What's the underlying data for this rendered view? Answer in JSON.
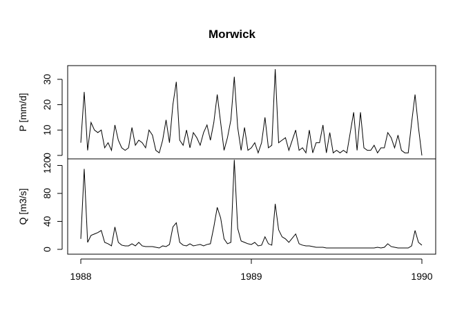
{
  "title": "Morwick",
  "chart_data": [
    {
      "type": "line",
      "ylabel": "P [mm/d]",
      "color": "#000000",
      "x": [
        1988,
        1988.02,
        1988.04,
        1988.06,
        1988.08,
        1988.1,
        1988.12,
        1988.14,
        1988.16,
        1988.18,
        1988.2,
        1988.22,
        1988.24,
        1988.26,
        1988.28,
        1988.3,
        1988.32,
        1988.34,
        1988.36,
        1988.38,
        1988.4,
        1988.42,
        1988.44,
        1988.46,
        1988.48,
        1988.5,
        1988.52,
        1988.54,
        1988.56,
        1988.58,
        1988.6,
        1988.62,
        1988.64,
        1988.66,
        1988.68,
        1988.7,
        1988.72,
        1988.74,
        1988.76,
        1988.78,
        1988.8,
        1988.82,
        1988.84,
        1988.86,
        1988.88,
        1988.9,
        1988.92,
        1988.94,
        1988.96,
        1988.98,
        1989,
        1989.02,
        1989.04,
        1989.06,
        1989.08,
        1989.1,
        1989.12,
        1989.14,
        1989.16,
        1989.18,
        1989.2,
        1989.22,
        1989.24,
        1989.26,
        1989.28,
        1989.3,
        1989.32,
        1989.34,
        1989.36,
        1989.38,
        1989.4,
        1989.42,
        1989.44,
        1989.46,
        1989.48,
        1989.5,
        1989.52,
        1989.54,
        1989.56,
        1989.58,
        1989.6,
        1989.62,
        1989.64,
        1989.66,
        1989.68,
        1989.7,
        1989.72,
        1989.74,
        1989.76,
        1989.78,
        1989.8,
        1989.82,
        1989.84,
        1989.86,
        1989.88,
        1989.9,
        1989.92,
        1989.94,
        1989.96,
        1989.98,
        1990
      ],
      "values": [
        5,
        25,
        2,
        13,
        10,
        9,
        10,
        3,
        5,
        2,
        12,
        6,
        3,
        2,
        3,
        11,
        4,
        6,
        5,
        3,
        10,
        8,
        2,
        1,
        6,
        14,
        5,
        20,
        29,
        6,
        4,
        10,
        3,
        9,
        7,
        4,
        9,
        12,
        6,
        13,
        24,
        13,
        2,
        7,
        14,
        31,
        11,
        2,
        11,
        2,
        3,
        5,
        1,
        5,
        15,
        3,
        4,
        34,
        5,
        6,
        7,
        2,
        6,
        10,
        2,
        3,
        1,
        10,
        1,
        5,
        5,
        12,
        1,
        9,
        1,
        2,
        1,
        2,
        1,
        9,
        17,
        2,
        17,
        3,
        2,
        2,
        4,
        1,
        3,
        3,
        9,
        7,
        3,
        8,
        2,
        1,
        1,
        13,
        24,
        11,
        0
      ],
      "xlim": [
        1987.923,
        1990.081
      ],
      "ylim": [
        -1.36,
        35.4
      ],
      "yticks": [
        0,
        10,
        20,
        30
      ]
    },
    {
      "type": "line",
      "ylabel": "Q [m3/s]",
      "color": "#000000",
      "x": [
        1988,
        1988.02,
        1988.04,
        1988.06,
        1988.08,
        1988.1,
        1988.12,
        1988.14,
        1988.16,
        1988.18,
        1988.2,
        1988.22,
        1988.24,
        1988.26,
        1988.28,
        1988.3,
        1988.32,
        1988.34,
        1988.36,
        1988.38,
        1988.4,
        1988.42,
        1988.44,
        1988.46,
        1988.48,
        1988.5,
        1988.52,
        1988.54,
        1988.56,
        1988.58,
        1988.6,
        1988.62,
        1988.64,
        1988.66,
        1988.68,
        1988.7,
        1988.72,
        1988.74,
        1988.76,
        1988.78,
        1988.8,
        1988.82,
        1988.84,
        1988.86,
        1988.88,
        1988.9,
        1988.92,
        1988.94,
        1988.96,
        1988.98,
        1989,
        1989.02,
        1989.04,
        1989.06,
        1989.08,
        1989.1,
        1989.12,
        1989.14,
        1989.16,
        1989.18,
        1989.2,
        1989.22,
        1989.24,
        1989.26,
        1989.28,
        1989.3,
        1989.32,
        1989.34,
        1989.36,
        1989.38,
        1989.4,
        1989.42,
        1989.44,
        1989.46,
        1989.48,
        1989.5,
        1989.52,
        1989.54,
        1989.56,
        1989.58,
        1989.6,
        1989.62,
        1989.64,
        1989.66,
        1989.68,
        1989.7,
        1989.72,
        1989.74,
        1989.76,
        1989.78,
        1989.8,
        1989.82,
        1989.84,
        1989.86,
        1989.88,
        1989.9,
        1989.92,
        1989.94,
        1989.96,
        1989.98,
        1990
      ],
      "values": [
        15,
        115,
        10,
        20,
        22,
        24,
        27,
        10,
        8,
        5,
        32,
        10,
        6,
        5,
        5,
        8,
        5,
        10,
        5,
        4,
        4,
        4,
        3,
        2,
        5,
        4,
        7,
        32,
        38,
        10,
        6,
        5,
        8,
        5,
        6,
        7,
        5,
        7,
        8,
        32,
        60,
        45,
        15,
        8,
        10,
        128,
        30,
        12,
        10,
        8,
        7,
        10,
        5,
        6,
        18,
        8,
        6,
        65,
        28,
        18,
        15,
        10,
        16,
        22,
        8,
        6,
        5,
        5,
        4,
        3,
        3,
        3,
        2,
        2,
        2,
        2,
        2,
        2,
        2,
        2,
        2,
        2,
        2,
        2,
        2,
        2,
        2,
        3,
        2,
        3,
        8,
        4,
        3,
        2,
        2,
        2,
        2,
        5,
        27,
        10,
        6
      ],
      "xlim": [
        1987.923,
        1990.081
      ],
      "ylim": [
        -6.9,
        129.4
      ],
      "yticks": [
        0,
        40,
        80,
        120
      ],
      "xticks": [
        1988,
        1989,
        1990
      ]
    }
  ]
}
